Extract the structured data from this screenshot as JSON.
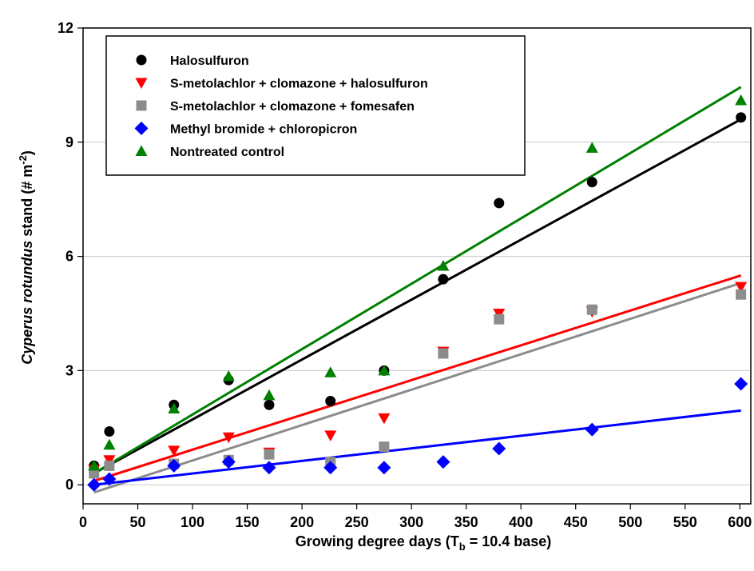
{
  "chart_data": {
    "type": "scatter",
    "xlabel": {
      "main": "Growing degree days (T",
      "sub": "b",
      "rest": " = 10.4 base)"
    },
    "ylabel": {
      "italic": "Cyperus rotundus",
      "plain": " stand (# m",
      "sup": "-2",
      "end": ")"
    },
    "xlim": [
      0,
      610
    ],
    "ylim": [
      -0.5,
      12
    ],
    "xticks": [
      0,
      50,
      100,
      150,
      200,
      250,
      300,
      350,
      400,
      450,
      500,
      550,
      600
    ],
    "yticks": [
      0,
      3,
      6,
      9,
      12
    ],
    "grid": {
      "horizontal": true,
      "vertical": false
    },
    "legend_position": "top-left",
    "series": [
      {
        "name": "Halosulfuron",
        "marker": "circle",
        "color": "#000000",
        "points": [
          [
            10,
            0.5
          ],
          [
            24,
            1.4
          ],
          [
            83,
            2.1
          ],
          [
            133,
            2.75
          ],
          [
            170,
            2.1
          ],
          [
            226,
            2.2
          ],
          [
            275,
            3.0
          ],
          [
            329,
            5.4
          ],
          [
            380,
            7.4
          ],
          [
            465,
            7.95
          ],
          [
            601,
            9.65
          ]
        ],
        "fit": {
          "x": [
            10,
            601
          ],
          "y": [
            0.3,
            9.6
          ]
        }
      },
      {
        "name": "S-metolachlor + clomazone + halosulfuron",
        "marker": "triangle-down",
        "color": "#ff0000",
        "points": [
          [
            10,
            0.4
          ],
          [
            24,
            0.65
          ],
          [
            83,
            0.9
          ],
          [
            133,
            1.25
          ],
          [
            170,
            0.85
          ],
          [
            226,
            1.3
          ],
          [
            275,
            1.75
          ],
          [
            329,
            3.5
          ],
          [
            380,
            4.5
          ],
          [
            465,
            4.55
          ],
          [
            601,
            5.2
          ]
        ],
        "fit": {
          "x": [
            10,
            601
          ],
          "y": [
            0.1,
            5.5
          ]
        }
      },
      {
        "name": "S-metolachlor + clomazone + fomesafen",
        "marker": "square",
        "color": "#8c8c8c",
        "points": [
          [
            10,
            0.3
          ],
          [
            24,
            0.5
          ],
          [
            83,
            0.55
          ],
          [
            133,
            0.65
          ],
          [
            170,
            0.8
          ],
          [
            226,
            0.6
          ],
          [
            275,
            1.0
          ],
          [
            329,
            3.45
          ],
          [
            380,
            4.35
          ],
          [
            465,
            4.6
          ],
          [
            601,
            5.0
          ]
        ],
        "fit": {
          "x": [
            10,
            601
          ],
          "y": [
            -0.2,
            5.3
          ]
        }
      },
      {
        "name": "Methyl bromide + chloropicron",
        "marker": "diamond",
        "color": "#0000ff",
        "points": [
          [
            10,
            0.0
          ],
          [
            24,
            0.15
          ],
          [
            83,
            0.5
          ],
          [
            133,
            0.6
          ],
          [
            170,
            0.45
          ],
          [
            226,
            0.45
          ],
          [
            275,
            0.45
          ],
          [
            329,
            0.6
          ],
          [
            380,
            0.95
          ],
          [
            465,
            1.45
          ],
          [
            601,
            2.65
          ]
        ],
        "fit": {
          "x": [
            10,
            601
          ],
          "y": [
            0.0,
            1.95
          ]
        }
      },
      {
        "name": "Nontreated control",
        "marker": "triangle-up",
        "color": "#008000",
        "points": [
          [
            10,
            0.5
          ],
          [
            24,
            1.05
          ],
          [
            83,
            2.0
          ],
          [
            133,
            2.85
          ],
          [
            170,
            2.35
          ],
          [
            226,
            2.95
          ],
          [
            275,
            3.0
          ],
          [
            329,
            5.75
          ],
          [
            465,
            8.85
          ],
          [
            601,
            10.1
          ]
        ],
        "fit": {
          "x": [
            10,
            601
          ],
          "y": [
            0.3,
            10.45
          ]
        }
      }
    ]
  }
}
